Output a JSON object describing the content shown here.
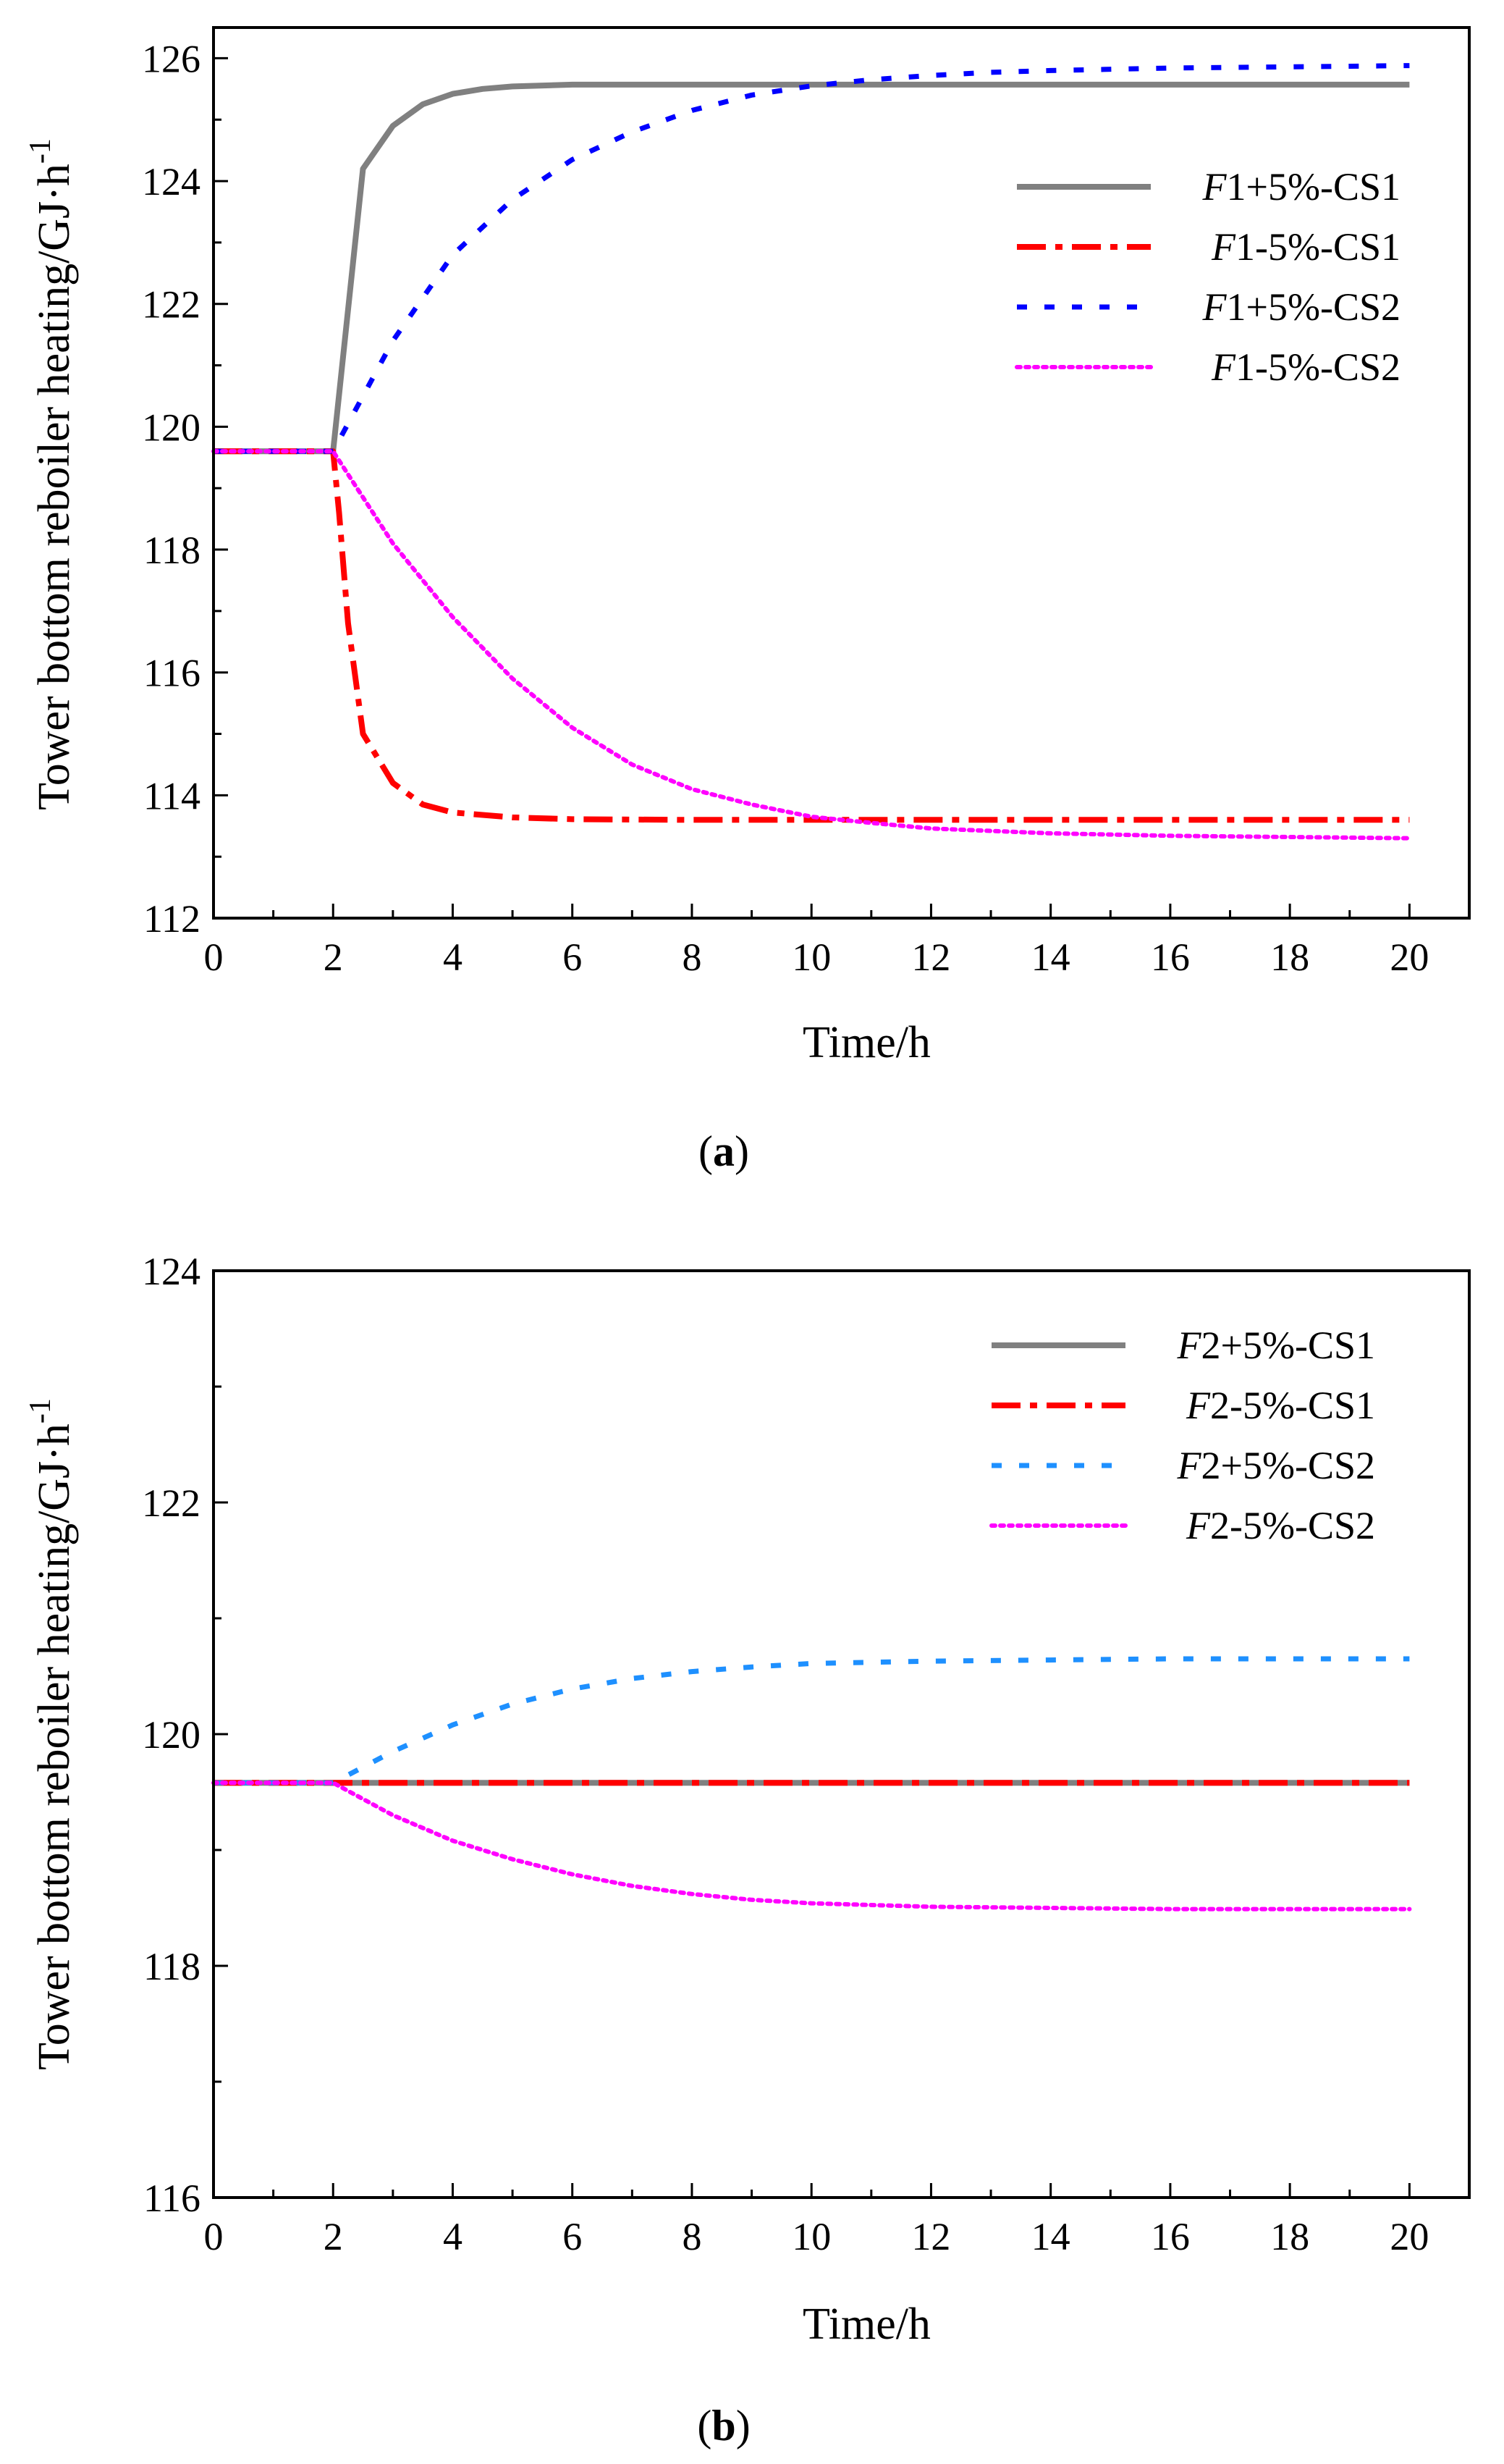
{
  "chart_data": [
    {
      "type": "line",
      "panel_label": "(a)",
      "panel_letter": "a",
      "title": "",
      "xlabel": "Time/h",
      "ylabel": "Tower bottom reboiler heating/GJ·h",
      "ylabel_exp": "-1",
      "xlim": [
        0,
        21
      ],
      "ylim": [
        112,
        126.5
      ],
      "xticks": [
        0,
        2,
        4,
        6,
        8,
        10,
        12,
        14,
        16,
        18,
        20
      ],
      "yticks": [
        112,
        114,
        116,
        118,
        120,
        122,
        124,
        126
      ],
      "legend_position": "upper-right",
      "series": [
        {
          "name": "F1+5%-CS1",
          "prefix": "F",
          "suffix": "1+5%-CS1",
          "color": "#808080",
          "style": "solid",
          "x": [
            0,
            2,
            2.5,
            3,
            3.5,
            4,
            4.5,
            5,
            6,
            8,
            10,
            12,
            14,
            16,
            18,
            20
          ],
          "y": [
            119.6,
            119.6,
            124.2,
            124.9,
            125.25,
            125.42,
            125.5,
            125.54,
            125.57,
            125.57,
            125.57,
            125.57,
            125.57,
            125.57,
            125.57,
            125.57
          ]
        },
        {
          "name": "F1-5%-CS1",
          "prefix": "F",
          "suffix": "1-5%-CS1",
          "color": "#ff0000",
          "style": "dashdot",
          "x": [
            0,
            2,
            2.1,
            2.25,
            2.5,
            3,
            3.5,
            4,
            5,
            6,
            8,
            10,
            12,
            14,
            16,
            18,
            20
          ],
          "y": [
            119.6,
            119.6,
            118.6,
            116.8,
            115.0,
            114.2,
            113.85,
            113.72,
            113.64,
            113.61,
            113.6,
            113.6,
            113.6,
            113.6,
            113.6,
            113.6,
            113.6
          ]
        },
        {
          "name": "F1+5%-CS2",
          "prefix": "F",
          "suffix": "1+5%-CS2",
          "color": "#0000ff",
          "style": "dash",
          "x": [
            0,
            2,
            3,
            4,
            5,
            6,
            7,
            8,
            9,
            10,
            11,
            12,
            13,
            14,
            16,
            18,
            20
          ],
          "y": [
            119.6,
            119.6,
            121.4,
            122.8,
            123.7,
            124.35,
            124.8,
            125.15,
            125.4,
            125.55,
            125.65,
            125.72,
            125.77,
            125.8,
            125.84,
            125.86,
            125.88
          ]
        },
        {
          "name": "F1-5%-CS2",
          "prefix": "F",
          "suffix": "1-5%-CS2",
          "color": "#ff00ff",
          "style": "dot",
          "x": [
            0,
            2,
            3,
            4,
            5,
            6,
            7,
            8,
            9,
            10,
            11,
            12,
            14,
            16,
            18,
            20
          ],
          "y": [
            119.6,
            119.6,
            118.1,
            116.9,
            115.9,
            115.1,
            114.5,
            114.1,
            113.85,
            113.65,
            113.55,
            113.46,
            113.38,
            113.34,
            113.32,
            113.3
          ]
        }
      ]
    },
    {
      "type": "line",
      "panel_label": "(b)",
      "panel_letter": "b",
      "title": "",
      "xlabel": "Time/h",
      "ylabel": "Tower bottom reboiler heating/GJ·h",
      "ylabel_exp": "-1",
      "xlim": [
        0,
        21
      ],
      "ylim": [
        116,
        124
      ],
      "xticks": [
        0,
        2,
        4,
        6,
        8,
        10,
        12,
        14,
        16,
        18,
        20
      ],
      "yticks": [
        116,
        118,
        120,
        122,
        124
      ],
      "legend_position": "upper-right",
      "series": [
        {
          "name": "F2+5%-CS1",
          "prefix": "F",
          "suffix": "2+5%-CS1",
          "color": "#808080",
          "style": "solid",
          "x": [
            0,
            20
          ],
          "y": [
            119.58,
            119.58
          ]
        },
        {
          "name": "F2-5%-CS1",
          "prefix": "F",
          "suffix": "2-5%-CS1",
          "color": "#ff0000",
          "style": "dashdot",
          "x": [
            0,
            20
          ],
          "y": [
            119.58,
            119.58
          ]
        },
        {
          "name": "F2+5%-CS2",
          "prefix": "F",
          "suffix": "2+5%-CS2",
          "color": "#1e90ff",
          "style": "dash",
          "x": [
            0,
            2,
            3,
            4,
            5,
            6,
            7,
            8,
            9,
            10,
            12,
            14,
            16,
            18,
            20
          ],
          "y": [
            119.58,
            119.58,
            119.85,
            120.08,
            120.26,
            120.39,
            120.48,
            120.54,
            120.58,
            120.61,
            120.63,
            120.64,
            120.65,
            120.65,
            120.65
          ]
        },
        {
          "name": "F2-5%-CS2",
          "prefix": "F",
          "suffix": "2-5%-CS2",
          "color": "#ff00ff",
          "style": "dot",
          "x": [
            0,
            2,
            3,
            4,
            5,
            6,
            7,
            8,
            9,
            10,
            12,
            14,
            16,
            18,
            20
          ],
          "y": [
            119.58,
            119.58,
            119.3,
            119.08,
            118.92,
            118.79,
            118.69,
            118.62,
            118.57,
            118.54,
            118.51,
            118.5,
            118.49,
            118.49,
            118.49
          ]
        }
      ]
    }
  ]
}
